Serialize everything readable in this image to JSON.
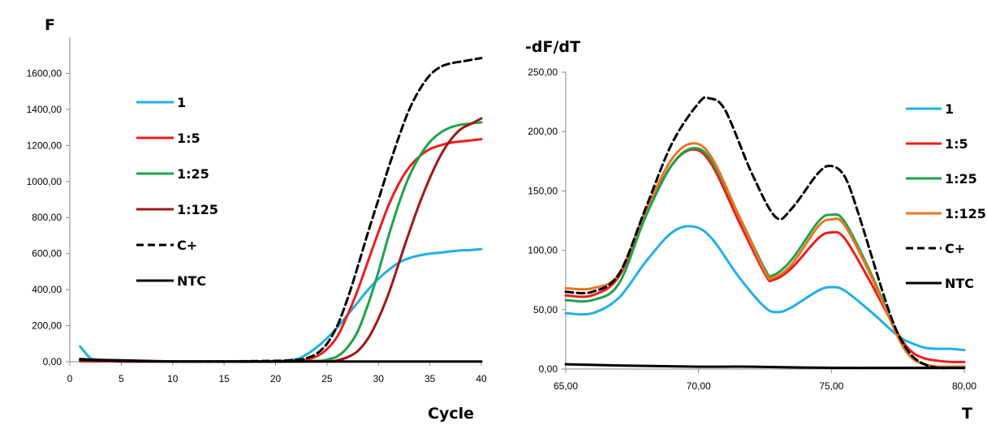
{
  "chart_data": [
    {
      "type": "line",
      "ylabel": "F",
      "xlabel": "Cycle",
      "xlim": [
        0,
        40
      ],
      "ylim": [
        0,
        1800
      ],
      "x_ticks": [
        "0",
        "5",
        "10",
        "15",
        "20",
        "25",
        "30",
        "35",
        "40"
      ],
      "y_ticks": [
        "0,00",
        "200,00",
        "400,00",
        "600,00",
        "800,00",
        "1000,00",
        "1200,00",
        "1400,00",
        "1600,00"
      ],
      "legend_position": "left",
      "series": [
        {
          "name": "1",
          "color": "#1fb0e6",
          "dash": "solid",
          "x": [
            1,
            1.5,
            2,
            2.5,
            3,
            5,
            10,
            15,
            20,
            22,
            23,
            24,
            25,
            26,
            27,
            28,
            29,
            30,
            31,
            32,
            33,
            34,
            35,
            36,
            37,
            38,
            39,
            40
          ],
          "y": [
            85,
            50,
            20,
            12,
            5,
            3,
            2,
            2,
            3,
            15,
            40,
            80,
            130,
            190,
            260,
            330,
            400,
            460,
            510,
            550,
            575,
            590,
            600,
            605,
            612,
            618,
            620,
            625
          ]
        },
        {
          "name": "1:5",
          "color": "#ef1b1b",
          "dash": "solid",
          "x": [
            1,
            3,
            5,
            10,
            15,
            20,
            22,
            23,
            24,
            25,
            26,
            27,
            28,
            29,
            30,
            31,
            32,
            33,
            34,
            35,
            36,
            37,
            38,
            39,
            40
          ],
          "y": [
            5,
            3,
            2,
            1,
            1,
            2,
            5,
            12,
            30,
            70,
            140,
            260,
            400,
            560,
            720,
            870,
            990,
            1080,
            1140,
            1180,
            1200,
            1215,
            1222,
            1228,
            1235
          ]
        },
        {
          "name": "1:25",
          "color": "#1fa24a",
          "dash": "solid",
          "x": [
            1,
            5,
            10,
            15,
            20,
            24,
            25,
            26,
            27,
            28,
            29,
            30,
            31,
            32,
            33,
            34,
            35,
            36,
            37,
            38,
            39,
            40
          ],
          "y": [
            3,
            2,
            1,
            1,
            2,
            5,
            12,
            30,
            80,
            170,
            320,
            500,
            700,
            880,
            1030,
            1140,
            1220,
            1270,
            1300,
            1315,
            1322,
            1328
          ]
        },
        {
          "name": "1:125",
          "color": "#a11515",
          "dash": "solid",
          "x": [
            1,
            5,
            10,
            15,
            20,
            25,
            26,
            27,
            28,
            29,
            30,
            31,
            32,
            33,
            34,
            35,
            36,
            37,
            38,
            39,
            40
          ],
          "y": [
            3,
            2,
            1,
            1,
            1,
            2,
            8,
            25,
            60,
            130,
            240,
            380,
            550,
            720,
            880,
            1020,
            1140,
            1230,
            1290,
            1320,
            1350
          ]
        },
        {
          "name": "C+",
          "color": "#000000",
          "dash": "dashed",
          "x": [
            1,
            5,
            10,
            15,
            20,
            22,
            23,
            24,
            25,
            26,
            27,
            28,
            29,
            30,
            31,
            32,
            33,
            34,
            35,
            36,
            37,
            38,
            39,
            40
          ],
          "y": [
            15,
            5,
            2,
            2,
            5,
            10,
            20,
            45,
            100,
            200,
            350,
            530,
            720,
            900,
            1080,
            1250,
            1400,
            1510,
            1590,
            1635,
            1655,
            1665,
            1675,
            1685
          ]
        },
        {
          "name": "NTC",
          "color": "#000000",
          "dash": "solid",
          "x": [
            1,
            5,
            10,
            15,
            20,
            25,
            30,
            35,
            40
          ],
          "y": [
            12,
            8,
            2,
            1,
            1,
            1,
            1,
            1,
            1
          ]
        }
      ]
    },
    {
      "type": "line",
      "ylabel": "-dF/dT",
      "xlabel": "T",
      "xlim": [
        65,
        80
      ],
      "ylim": [
        0,
        250
      ],
      "x_ticks": [
        "65,00",
        "70,00",
        "75,00",
        "80,00"
      ],
      "y_ticks": [
        "0,00",
        "50,00",
        "100,00",
        "150,00",
        "200,00",
        "250,00"
      ],
      "legend_position": "right",
      "series": [
        {
          "name": "1",
          "color": "#1fb0e6",
          "dash": "solid",
          "x": [
            65,
            66,
            67,
            68,
            69,
            69.8,
            70.5,
            71.5,
            72.5,
            73,
            73.5,
            74.5,
            75,
            75.5,
            76.5,
            77.5,
            78,
            78.5,
            79,
            79.5,
            80
          ],
          "y": [
            47,
            47,
            60,
            90,
            115,
            120,
            110,
            78,
            52,
            48,
            52,
            66,
            69,
            66,
            48,
            28,
            22,
            18,
            17,
            17,
            16
          ]
        },
        {
          "name": "1:5",
          "color": "#ef1b1b",
          "dash": "solid",
          "x": [
            65,
            66,
            67,
            68,
            69,
            69.8,
            70.5,
            71.5,
            72.5,
            72.8,
            73.5,
            74.5,
            75,
            75.5,
            76.5,
            77.5,
            78,
            78.5,
            79,
            79.5,
            80
          ],
          "y": [
            62,
            62,
            78,
            130,
            172,
            185,
            172,
            125,
            80,
            75,
            85,
            110,
            115,
            110,
            72,
            30,
            15,
            9,
            7,
            6,
            6
          ]
        },
        {
          "name": "1:25",
          "color": "#1fa24a",
          "dash": "solid",
          "x": [
            65,
            66,
            67,
            68,
            69,
            69.8,
            70.5,
            71.5,
            72.5,
            72.8,
            73.5,
            74.5,
            75,
            75.5,
            76.5,
            77.5,
            78,
            78.5,
            79,
            79.5,
            80
          ],
          "y": [
            58,
            58,
            72,
            128,
            172,
            186,
            175,
            130,
            84,
            79,
            92,
            124,
            130,
            124,
            80,
            28,
            10,
            4,
            2,
            2,
            2
          ]
        },
        {
          "name": "1:125",
          "color": "#e87722",
          "dash": "solid",
          "x": [
            65,
            66,
            67,
            68,
            69,
            69.8,
            70.5,
            71.5,
            72.5,
            72.8,
            73.5,
            74.5,
            75,
            75.5,
            76.5,
            77.5,
            78,
            78.5,
            79,
            79.5,
            80
          ],
          "y": [
            68,
            68,
            80,
            133,
            177,
            190,
            178,
            130,
            82,
            77,
            88,
            120,
            126,
            121,
            78,
            27,
            10,
            4,
            2,
            2,
            2
          ]
        },
        {
          "name": "C+",
          "color": "#000000",
          "dash": "dashed",
          "x": [
            65,
            66,
            67,
            68,
            69,
            70,
            70.4,
            71,
            72,
            72.9,
            73.5,
            74.5,
            75,
            75.5,
            76,
            77,
            77.5,
            78,
            78.5,
            79,
            79.5,
            80
          ],
          "y": [
            65,
            65,
            80,
            135,
            190,
            224,
            228,
            218,
            165,
            128,
            135,
            165,
            171,
            162,
            132,
            60,
            30,
            12,
            4,
            1,
            1,
            1
          ]
        },
        {
          "name": "NTC",
          "color": "#000000",
          "dash": "solid",
          "x": [
            65,
            67,
            70,
            72,
            75,
            78,
            80
          ],
          "y": [
            4,
            3,
            2,
            2,
            1,
            1,
            1
          ]
        }
      ]
    }
  ]
}
